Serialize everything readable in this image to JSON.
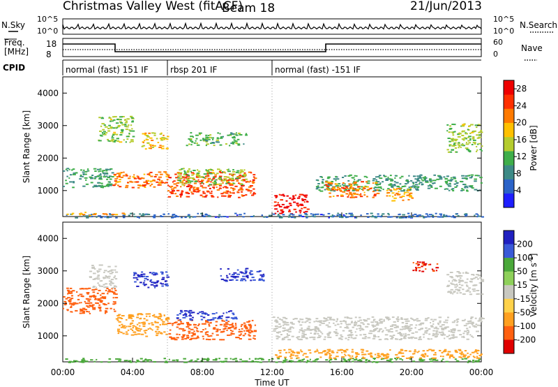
{
  "header": {
    "station": "Christmas Valley West (fitACF)",
    "beam": "Beam 18",
    "date": "21/Jun/2013"
  },
  "nsky_panel": {
    "left_label": "N.Sky",
    "right_label": "N.Search",
    "ticks_left": [
      "10^5",
      "10^0"
    ],
    "ticks_right": [
      "10^5",
      "10^0"
    ]
  },
  "freq_panel": {
    "left_label_line1": "Freq.",
    "left_label_line2": "[MHz]",
    "right_label": "Nave",
    "ticks_left": [
      "18",
      "8"
    ],
    "ticks_right": [
      "60",
      "0"
    ]
  },
  "cpid": {
    "label": "CPID",
    "segments": [
      {
        "start": 0,
        "end": 6,
        "text": "normal (fast) 151 IF"
      },
      {
        "start": 6,
        "end": 12,
        "text": "rbsp 201 IF"
      },
      {
        "start": 12,
        "end": 24,
        "text": "normal (fast) -151 IF"
      }
    ]
  },
  "chart_data": [
    {
      "type": "heatmap",
      "name": "power",
      "ylabel": "Slant Range [km]",
      "yticks": [
        "1000",
        "2000",
        "3000",
        "4000"
      ],
      "ylim": [
        200,
        4500
      ],
      "xlim": [
        0,
        24
      ],
      "colorbar": {
        "label": "Power [dB]",
        "ticks": [
          "4",
          "8",
          "12",
          "16",
          "20",
          "24",
          "28"
        ],
        "range": [
          0,
          30
        ],
        "colors": [
          "#1e1eff",
          "#2b63c8",
          "#3d8a86",
          "#3fae4a",
          "#b5cc2e",
          "#ffc000",
          "#ff7a00",
          "#ff3000",
          "#ee0000"
        ]
      },
      "bands": [
        {
          "t0": 0.0,
          "t1": 2.8,
          "r0": 1100,
          "r1": 1700,
          "v": 10
        },
        {
          "t0": 2.8,
          "t1": 6.0,
          "r0": 1100,
          "r1": 1600,
          "v": 22
        },
        {
          "t0": 6.0,
          "t1": 11.0,
          "r0": 800,
          "r1": 1600,
          "v": 24
        },
        {
          "t0": 6.5,
          "t1": 10.5,
          "r0": 1200,
          "r1": 1700,
          "v": 14
        },
        {
          "t0": 2.0,
          "t1": 4.0,
          "r0": 2500,
          "r1": 3300,
          "v": 14
        },
        {
          "t0": 4.5,
          "t1": 6.0,
          "r0": 2300,
          "r1": 2800,
          "v": 18
        },
        {
          "t0": 12.0,
          "t1": 14.0,
          "r0": 300,
          "r1": 900,
          "v": 28
        },
        {
          "t0": 14.5,
          "t1": 24.0,
          "r0": 1000,
          "r1": 1500,
          "v": 10
        },
        {
          "t0": 15.0,
          "t1": 18.0,
          "r0": 800,
          "r1": 1300,
          "v": 22
        },
        {
          "t0": 18.5,
          "t1": 20.0,
          "r0": 700,
          "r1": 1100,
          "v": 20
        },
        {
          "t0": 0.0,
          "t1": 24.0,
          "r0": 180,
          "r1": 320,
          "v": 6
        },
        {
          "t0": 0.0,
          "t1": 3.5,
          "r0": 250,
          "r1": 350,
          "v": 20
        },
        {
          "t0": 7.0,
          "t1": 10.5,
          "r0": 2400,
          "r1": 2800,
          "v": 12
        },
        {
          "t0": 22.0,
          "t1": 24.0,
          "r0": 2200,
          "r1": 3100,
          "v": 14
        }
      ]
    },
    {
      "type": "heatmap",
      "name": "velocity",
      "ylabel": "Slant Range [km]",
      "yticks": [
        "1000",
        "2000",
        "3000",
        "4000"
      ],
      "ylim": [
        200,
        4500
      ],
      "xlim": [
        0,
        24
      ],
      "xticks": [
        "00:00",
        "04:00",
        "08:00",
        "12:00",
        "16:00",
        "20:00",
        "00:00"
      ],
      "xlabel": "Time UT",
      "colorbar": {
        "label": "Velocity [m s^-1]",
        "ticks": [
          "200",
          "100",
          "50",
          "15",
          "-15",
          "-50",
          "-100",
          "-200"
        ],
        "colors": [
          "#2020c0",
          "#3a5ad8",
          "#4aa83a",
          "#8ed05a",
          "#c8c8c0",
          "#ffd24a",
          "#ffa020",
          "#ff6010",
          "#e00000"
        ]
      },
      "bands": [
        {
          "t0": 0.0,
          "t1": 3.0,
          "r0": 1700,
          "r1": 2500,
          "v": -120
        },
        {
          "t0": 1.5,
          "t1": 3.0,
          "r0": 2500,
          "r1": 3200,
          "v": 0
        },
        {
          "t0": 3.0,
          "t1": 6.0,
          "r0": 1000,
          "r1": 1700,
          "v": -60
        },
        {
          "t0": 6.0,
          "t1": 11.0,
          "r0": 900,
          "r1": 1500,
          "v": -80
        },
        {
          "t0": 6.5,
          "t1": 10.0,
          "r0": 1500,
          "r1": 1800,
          "v": 150
        },
        {
          "t0": 4.0,
          "t1": 6.0,
          "r0": 2500,
          "r1": 3000,
          "v": 150
        },
        {
          "t0": 9.0,
          "t1": 11.5,
          "r0": 2700,
          "r1": 3100,
          "v": 150
        },
        {
          "t0": 12.0,
          "t1": 24.0,
          "r0": 900,
          "r1": 1600,
          "v": 0
        },
        {
          "t0": 0.0,
          "t1": 24.0,
          "r0": 200,
          "r1": 330,
          "v": 40
        },
        {
          "t0": 12.0,
          "t1": 24.0,
          "r0": 330,
          "r1": 600,
          "v": -40
        },
        {
          "t0": 20.0,
          "t1": 21.5,
          "r0": 3000,
          "r1": 3300,
          "v": -150
        },
        {
          "t0": 22.0,
          "t1": 24.0,
          "r0": 2300,
          "r1": 3000,
          "v": 0
        }
      ]
    }
  ]
}
